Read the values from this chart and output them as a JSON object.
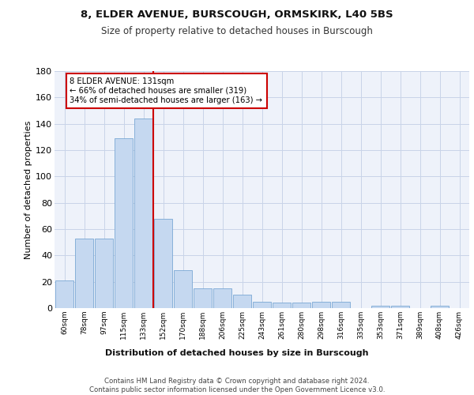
{
  "title1": "8, ELDER AVENUE, BURSCOUGH, ORMSKIRK, L40 5BS",
  "title2": "Size of property relative to detached houses in Burscough",
  "xlabel": "Distribution of detached houses by size in Burscough",
  "ylabel": "Number of detached properties",
  "categories": [
    "60sqm",
    "78sqm",
    "97sqm",
    "115sqm",
    "133sqm",
    "152sqm",
    "170sqm",
    "188sqm",
    "206sqm",
    "225sqm",
    "243sqm",
    "261sqm",
    "280sqm",
    "298sqm",
    "316sqm",
    "335sqm",
    "353sqm",
    "371sqm",
    "389sqm",
    "408sqm",
    "426sqm"
  ],
  "values": [
    21,
    53,
    53,
    129,
    144,
    68,
    29,
    15,
    15,
    10,
    5,
    4,
    4,
    5,
    5,
    0,
    2,
    2,
    0,
    2,
    0
  ],
  "bar_color": "#c5d8f0",
  "bar_edge_color": "#7aa8d4",
  "vline_index": 4,
  "annotation_text": "8 ELDER AVENUE: 131sqm\n← 66% of detached houses are smaller (319)\n34% of semi-detached houses are larger (163) →",
  "annotation_box_color": "#ffffff",
  "annotation_box_edge": "#cc0000",
  "vline_color": "#cc0000",
  "ylim": [
    0,
    180
  ],
  "yticks": [
    0,
    20,
    40,
    60,
    80,
    100,
    120,
    140,
    160,
    180
  ],
  "footer": "Contains HM Land Registry data © Crown copyright and database right 2024.\nContains public sector information licensed under the Open Government Licence v3.0.",
  "bg_color": "#eef2fa",
  "grid_color": "#c8d4e8"
}
